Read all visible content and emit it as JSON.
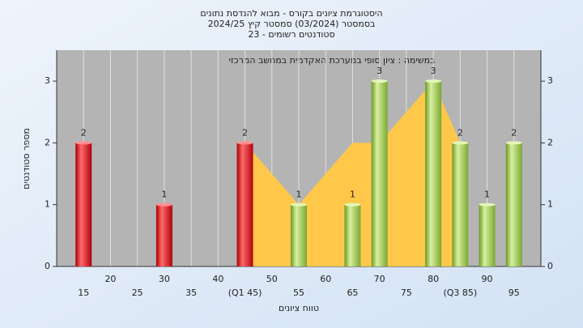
{
  "chart_data": {
    "type": "bar",
    "title": [
      "היסטוגרמת ציונים בקורס - מבוא להנדסת נתונים",
      "בסמסטר  (03/2024)  סמסטר קיץ  2024/25",
      "סטודנטים רשומים - 23"
    ],
    "annotation": "במשימה : ציון סופי במערכת האקדמית במחשב המרכזי",
    "x_label": "טווח ציונים",
    "y_label": "מספר סטודנטים",
    "x": [
      15,
      30,
      45,
      55,
      65,
      70,
      80,
      85,
      90,
      95
    ],
    "values": [
      2,
      1,
      2,
      1,
      1,
      3,
      3,
      2,
      1,
      2
    ],
    "colors": [
      "red",
      "red",
      "red",
      "green",
      "green",
      "green",
      "green",
      "green",
      "green",
      "green"
    ],
    "area": {
      "x": [
        45,
        55,
        65,
        70,
        80,
        85
      ],
      "values": [
        2,
        1,
        2,
        2,
        3,
        2
      ],
      "color": "#ffc84a"
    },
    "xlim": [
      10,
      100
    ],
    "xticks": [
      15,
      20,
      25,
      30,
      35,
      40,
      {
        "value": 45,
        "label": "(Q1 45)"
      },
      50,
      55,
      60,
      65,
      70,
      75,
      80,
      {
        "value": 85,
        "label": "(Q3 85)"
      },
      90,
      95
    ],
    "ylim": [
      0,
      3.5
    ],
    "yticks": [
      0,
      1,
      2,
      3
    ],
    "grid": true
  }
}
